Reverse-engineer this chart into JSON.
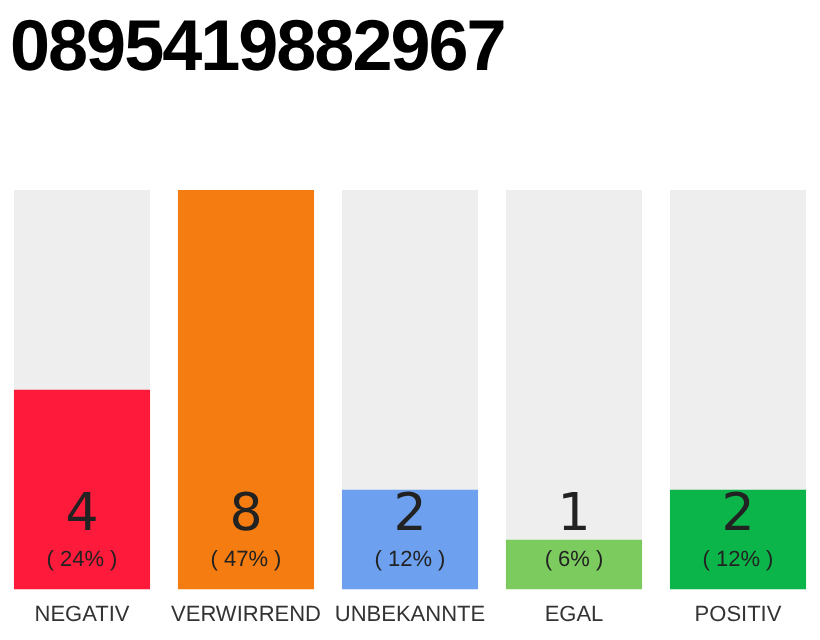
{
  "chart_data": {
    "type": "bar",
    "title": "0895419882967",
    "categories": [
      "NEGATIV",
      "VERWIRREND",
      "UNBEKANNTE",
      "EGAL",
      "POSITIV"
    ],
    "values": [
      4,
      8,
      2,
      1,
      2
    ],
    "colors": [
      "#fe1a3a",
      "#f47c10",
      "#6da0ee",
      "#7ccb5e",
      "#0cb54a"
    ],
    "data_labels": true,
    "annotations": [
      {
        "text": "( 24% )",
        "x": "NEGATIV",
        "y": 0
      },
      {
        "text": "( 47% )",
        "x": "VERWIRREND",
        "y": 0
      },
      {
        "text": "( 12% )",
        "x": "UNBEKANNTE",
        "y": 0
      },
      {
        "text": "( 6% )",
        "x": "EGAL",
        "y": 0
      },
      {
        "text": "( 12% )",
        "x": "POSITIV",
        "y": 0
      }
    ],
    "grid": false,
    "legend": false
  }
}
